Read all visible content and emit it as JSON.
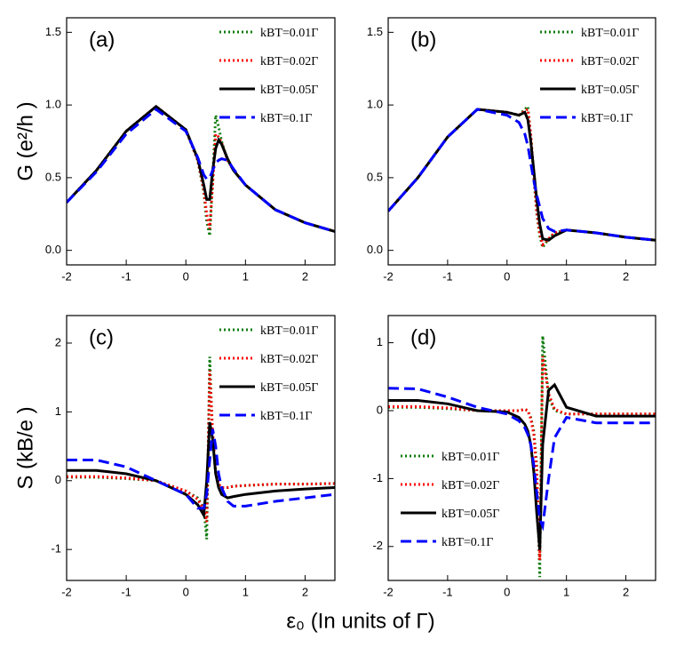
{
  "xlabel": "ε₀ (In units of Γ)",
  "chart_data": [
    {
      "type": "line",
      "panel_label": "(a)",
      "ylabel": "G (e²/h )",
      "legend": "upper right",
      "x": [
        -2,
        -1.5,
        -1,
        -0.5,
        0,
        0.2,
        0.3,
        0.35,
        0.4,
        0.45,
        0.5,
        0.55,
        0.6,
        0.7,
        0.8,
        1,
        1.5,
        2,
        2.5
      ],
      "xlim": [
        -2,
        2.5
      ],
      "xticks": [
        -2,
        -1,
        0,
        1,
        2
      ],
      "ylim": [
        -0.1,
        1.6
      ],
      "yticks": [
        {
          "value": 0,
          "label": "0.0"
        },
        0.5,
        {
          "value": 1,
          "label": "1.0"
        },
        1.5
      ],
      "series": [
        {
          "name": "kBT=0.01Γ",
          "color": "#107c10",
          "dash": "dot",
          "values": [
            0.33,
            0.55,
            0.82,
            0.99,
            0.83,
            0.62,
            0.4,
            0.2,
            0.1,
            0.5,
            0.93,
            0.85,
            0.75,
            0.62,
            0.55,
            0.45,
            0.28,
            0.19,
            0.13
          ]
        },
        {
          "name": "kBT=0.02Γ",
          "color": "#ff0000",
          "dash": "dot",
          "values": [
            0.33,
            0.55,
            0.82,
            0.99,
            0.83,
            0.62,
            0.42,
            0.25,
            0.15,
            0.45,
            0.8,
            0.78,
            0.74,
            0.62,
            0.55,
            0.45,
            0.28,
            0.19,
            0.13
          ]
        },
        {
          "name": "kBT=0.05Γ",
          "color": "#000000",
          "dash": "solid",
          "values": [
            0.33,
            0.55,
            0.82,
            0.99,
            0.83,
            0.63,
            0.45,
            0.35,
            0.35,
            0.55,
            0.7,
            0.76,
            0.73,
            0.63,
            0.55,
            0.45,
            0.28,
            0.19,
            0.13
          ]
        },
        {
          "name": "kBT=0.1Γ",
          "color": "#0000ff",
          "dash": "dash",
          "values": [
            0.33,
            0.54,
            0.8,
            0.97,
            0.82,
            0.64,
            0.52,
            0.49,
            0.5,
            0.55,
            0.6,
            0.62,
            0.63,
            0.62,
            0.56,
            0.45,
            0.28,
            0.19,
            0.13
          ]
        }
      ]
    },
    {
      "type": "line",
      "panel_label": "(b)",
      "legend": "upper right",
      "x": [
        -2,
        -1.5,
        -1,
        -0.5,
        0,
        0.2,
        0.3,
        0.35,
        0.4,
        0.45,
        0.5,
        0.55,
        0.6,
        0.7,
        0.8,
        1,
        1.5,
        2,
        2.5
      ],
      "xlim": [
        -2,
        2.5
      ],
      "xticks": [
        -2,
        -1,
        0,
        1,
        2
      ],
      "ylim": [
        -0.1,
        1.6
      ],
      "yticks": [
        {
          "value": 0,
          "label": "0.0"
        },
        0.5,
        {
          "value": 1,
          "label": "1.0"
        },
        1.5
      ],
      "series": [
        {
          "name": "kBT=0.01Γ",
          "color": "#107c10",
          "dash": "dot",
          "values": [
            0.27,
            0.5,
            0.78,
            0.97,
            0.95,
            0.93,
            0.97,
            0.99,
            0.8,
            0.5,
            0.25,
            0.1,
            0.02,
            0.08,
            0.12,
            0.14,
            0.12,
            0.09,
            0.07
          ]
        },
        {
          "name": "kBT=0.02Γ",
          "color": "#ff0000",
          "dash": "dot",
          "values": [
            0.27,
            0.5,
            0.78,
            0.97,
            0.95,
            0.93,
            0.96,
            0.97,
            0.8,
            0.52,
            0.27,
            0.12,
            0.04,
            0.08,
            0.12,
            0.14,
            0.12,
            0.09,
            0.07
          ]
        },
        {
          "name": "kBT=0.05Γ",
          "color": "#000000",
          "dash": "solid",
          "values": [
            0.27,
            0.5,
            0.78,
            0.97,
            0.95,
            0.93,
            0.95,
            0.9,
            0.75,
            0.55,
            0.35,
            0.18,
            0.08,
            0.07,
            0.1,
            0.14,
            0.12,
            0.09,
            0.07
          ]
        },
        {
          "name": "kBT=0.1Γ",
          "color": "#0000ff",
          "dash": "dash",
          "values": [
            0.27,
            0.5,
            0.78,
            0.97,
            0.93,
            0.88,
            0.8,
            0.72,
            0.6,
            0.48,
            0.38,
            0.3,
            0.22,
            0.15,
            0.13,
            0.14,
            0.12,
            0.09,
            0.07
          ]
        }
      ]
    },
    {
      "type": "line",
      "panel_label": "(c)",
      "ylabel": "S (kB/e )",
      "legend": "upper right",
      "x": [
        -2,
        -1.5,
        -1,
        -0.5,
        0,
        0.2,
        0.3,
        0.35,
        0.4,
        0.45,
        0.5,
        0.55,
        0.6,
        0.7,
        0.8,
        1,
        1.5,
        2,
        2.5
      ],
      "xlim": [
        -2,
        2.5
      ],
      "xticks": [
        -2,
        -1,
        0,
        1,
        2
      ],
      "ylim": [
        -1.45,
        2.4
      ],
      "yticks": [
        -1,
        0,
        1,
        2
      ],
      "series": [
        {
          "name": "kBT=0.01Γ",
          "color": "#107c10",
          "dash": "dot",
          "values": [
            0.05,
            0.05,
            0.03,
            0,
            -0.15,
            -0.25,
            -0.4,
            -0.85,
            1.8,
            0.6,
            0.1,
            -0.05,
            -0.1,
            -0.1,
            -0.08,
            -0.07,
            -0.05,
            -0.05,
            -0.04
          ]
        },
        {
          "name": "kBT=0.02Γ",
          "color": "#ff0000",
          "dash": "dot",
          "values": [
            0.06,
            0.06,
            0.04,
            0,
            -0.15,
            -0.27,
            -0.42,
            -0.6,
            1.6,
            0.7,
            0.12,
            -0.05,
            -0.1,
            -0.1,
            -0.08,
            -0.07,
            -0.05,
            -0.05,
            -0.04
          ]
        },
        {
          "name": "kBT=0.05Γ",
          "color": "#000000",
          "dash": "solid",
          "values": [
            0.15,
            0.15,
            0.1,
            0,
            -0.2,
            -0.35,
            -0.5,
            0,
            0.85,
            0.6,
            0.1,
            -0.1,
            -0.2,
            -0.25,
            -0.23,
            -0.2,
            -0.15,
            -0.12,
            -0.1
          ]
        },
        {
          "name": "kBT=0.1Γ",
          "color": "#0000ff",
          "dash": "dash",
          "values": [
            0.3,
            0.3,
            0.2,
            0,
            -0.2,
            -0.4,
            -0.4,
            -0.2,
            0.3,
            0.75,
            0.5,
            0.1,
            -0.1,
            -0.3,
            -0.37,
            -0.37,
            -0.3,
            -0.25,
            -0.2
          ]
        }
      ]
    },
    {
      "type": "line",
      "panel_label": "(d)",
      "legend": "lower left",
      "x": [
        -2,
        -1.5,
        -1,
        -0.5,
        0,
        0.2,
        0.3,
        0.35,
        0.4,
        0.45,
        0.5,
        0.55,
        0.6,
        0.7,
        0.8,
        1,
        1.5,
        2,
        2.5
      ],
      "xlim": [
        -2,
        2.5
      ],
      "xticks": [
        -2,
        -1,
        0,
        1,
        2
      ],
      "ylim": [
        -2.5,
        1.4
      ],
      "yticks": [
        -2,
        -1,
        0,
        1
      ],
      "series": [
        {
          "name": "kBT=0.01Γ",
          "color": "#107c10",
          "dash": "dot",
          "values": [
            0.05,
            0.05,
            0.03,
            0,
            0,
            0,
            0.02,
            0,
            -0.1,
            -0.3,
            -0.8,
            -2.45,
            1.1,
            0.2,
            0,
            -0.05,
            -0.05,
            -0.05,
            -0.05
          ]
        },
        {
          "name": "kBT=0.02Γ",
          "color": "#ff0000",
          "dash": "dot",
          "values": [
            0.06,
            0.06,
            0.04,
            0,
            0,
            0,
            0.02,
            0,
            -0.12,
            -0.35,
            -0.9,
            -2.2,
            0.8,
            0.25,
            0.02,
            -0.05,
            -0.05,
            -0.05,
            -0.05
          ]
        },
        {
          "name": "kBT=0.05Γ",
          "color": "#000000",
          "dash": "solid",
          "values": [
            0.15,
            0.15,
            0.1,
            0,
            -0.02,
            -0.1,
            -0.2,
            -0.3,
            -0.5,
            -0.9,
            -1.5,
            -2.05,
            -0.5,
            0.3,
            0.38,
            0.05,
            -0.08,
            -0.08,
            -0.08
          ]
        },
        {
          "name": "kBT=0.1Γ",
          "color": "#0000ff",
          "dash": "dash",
          "values": [
            0.33,
            0.32,
            0.2,
            0.05,
            -0.05,
            -0.15,
            -0.25,
            -0.35,
            -0.5,
            -0.8,
            -1.2,
            -1.6,
            -1.7,
            -1,
            -0.4,
            -0.1,
            -0.18,
            -0.18,
            -0.18
          ]
        }
      ]
    }
  ]
}
